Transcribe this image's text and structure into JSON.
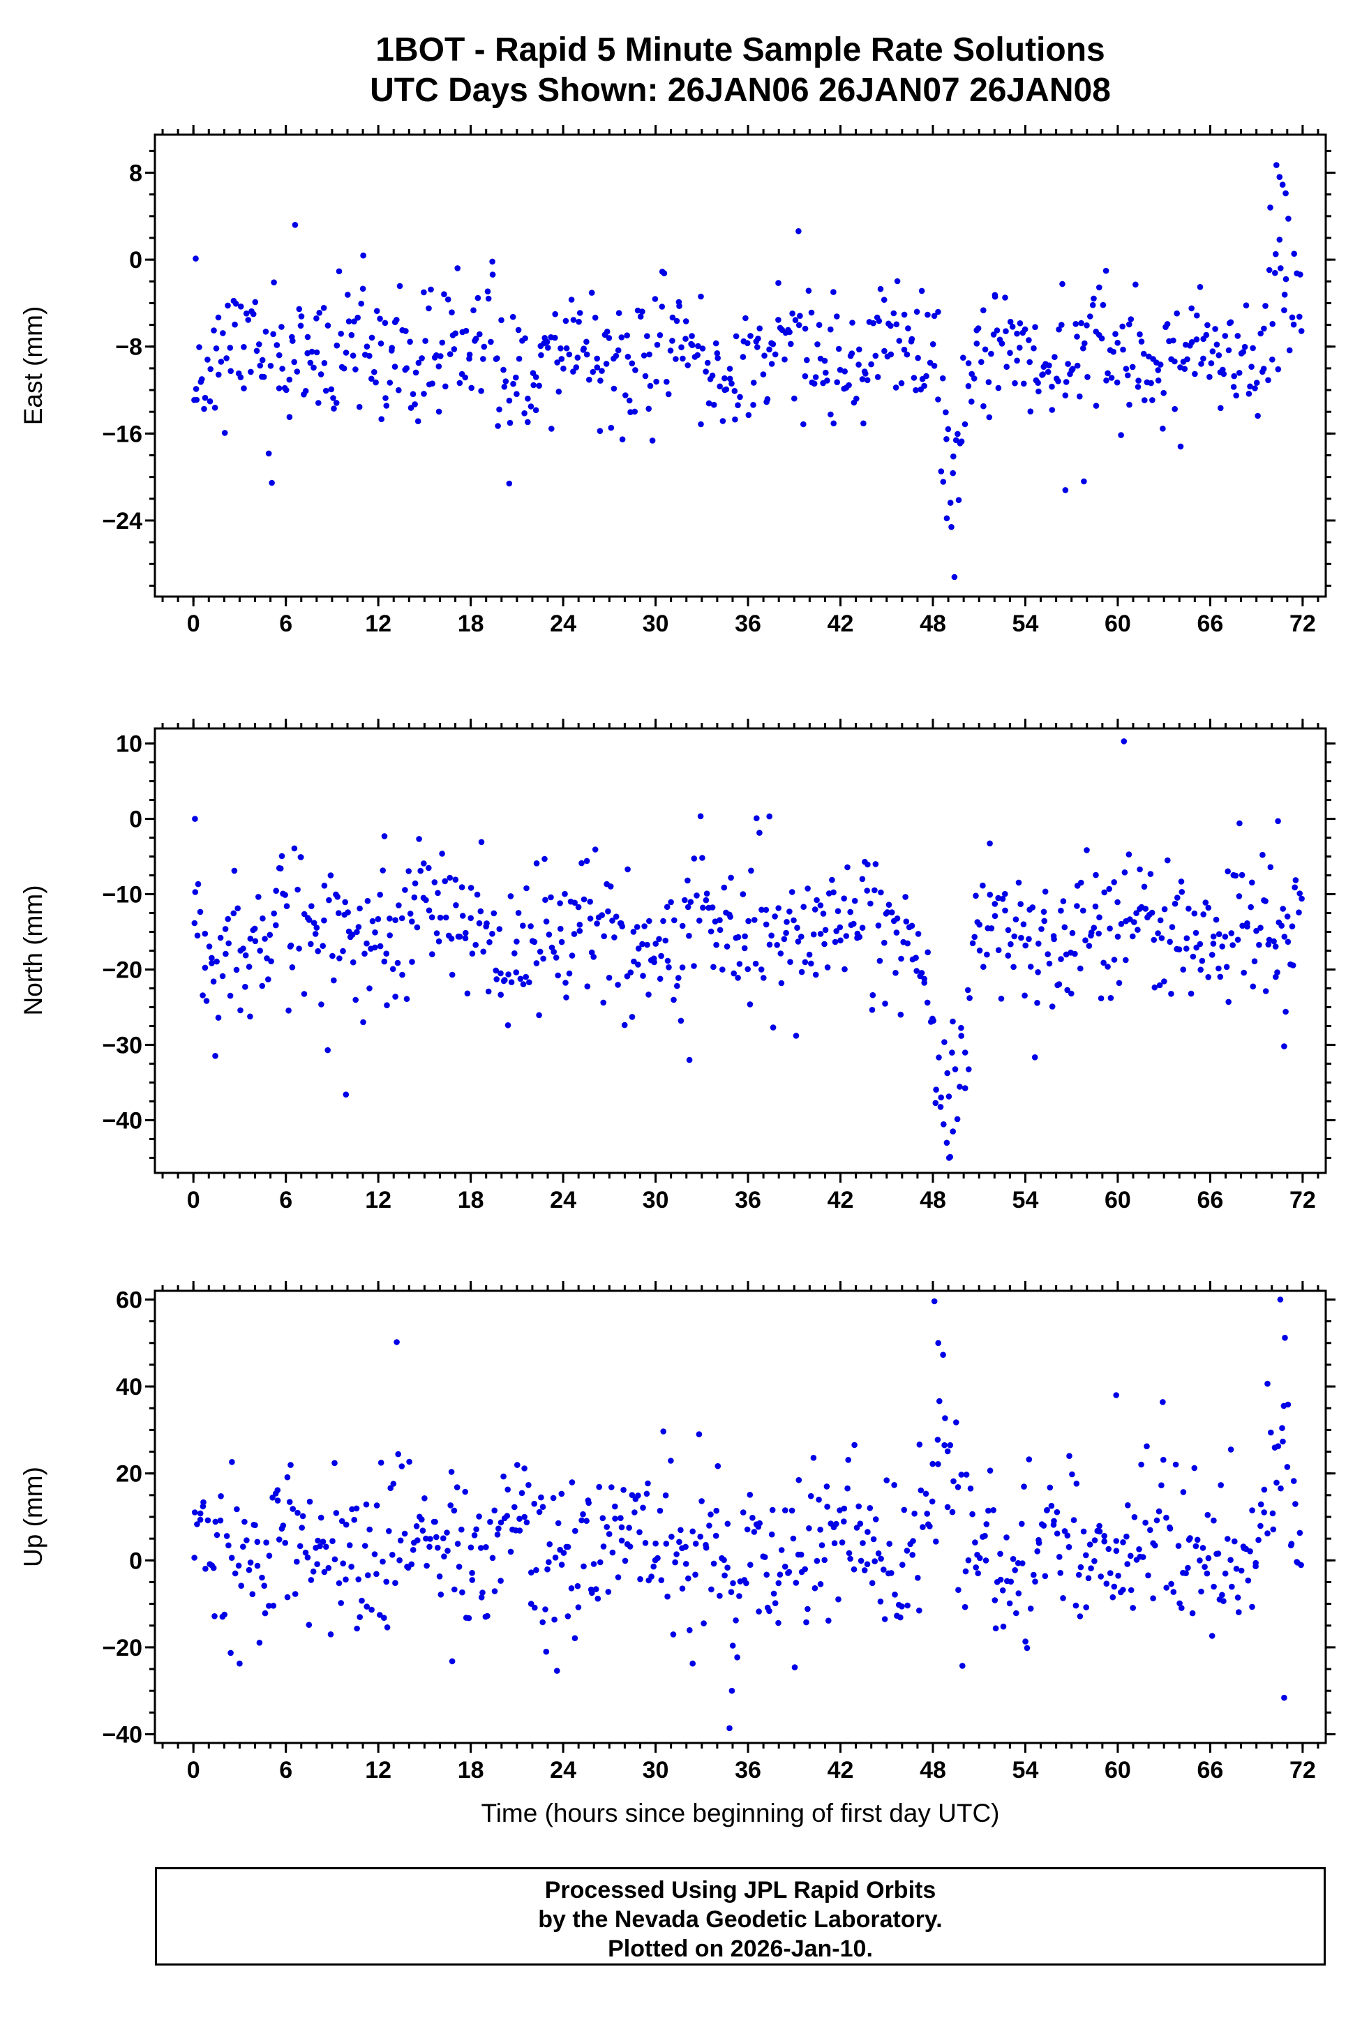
{
  "page": {
    "footer_lines": [
      "Processed Using JPL Rapid Orbits",
      "by the Nevada Geodetic Laboratory.",
      "Plotted on 2026-Jan-10."
    ]
  },
  "chart_data": {
    "type": "scatter",
    "title": "1BOT - Rapid 5 Minute Sample Rate Solutions",
    "subtitle": "UTC Days Shown:  26JAN06 26JAN07 26JAN08",
    "xlabel": "Time (hours since beginning of first day UTC)",
    "station": "1BOT",
    "utc_days_shown": [
      "26JAN06",
      "26JAN07",
      "26JAN08"
    ],
    "marker": {
      "shape": "circle",
      "color": "#0000e6",
      "radius_px": 4.3
    },
    "grid": false,
    "legend": false,
    "panels": [
      {
        "series_name": "East",
        "ylabel": "East (mm)",
        "xlim": [
          -2.5,
          73.5
        ],
        "ylim": [
          -31,
          11.5
        ],
        "xticks": [
          0,
          6,
          12,
          18,
          24,
          30,
          36,
          42,
          48,
          54,
          60,
          66,
          72
        ],
        "yticks": [
          8,
          0,
          -8,
          -16,
          -24
        ],
        "x_minor_step": 1,
        "y_minor_step": 2,
        "gen": {
          "seed": 11,
          "n": 660,
          "mean": -9,
          "sd": 3.1,
          "wave_amp": 1.2,
          "wave_period": 7,
          "anomalies": [
            {
              "x": 49.3,
              "w": 1.2,
              "dy": -13
            },
            {
              "x": 70.8,
              "w": 1.6,
              "dy": 11
            }
          ],
          "extra": [
            [
              0.15,
              0.1
            ],
            [
              6.6,
              3.2
            ],
            [
              20.5,
              -20.6
            ],
            [
              48.9,
              -23.8
            ],
            [
              49.2,
              -24.6
            ],
            [
              49.4,
              -29.2
            ],
            [
              56.6,
              -21.2
            ],
            [
              57.8,
              -20.4
            ],
            [
              69.9,
              4.8
            ],
            [
              70.3,
              8.7
            ],
            [
              70.5,
              7.6
            ],
            [
              70.7,
              6.9
            ],
            [
              70.9,
              6.1
            ]
          ]
        }
      },
      {
        "series_name": "North",
        "ylabel": "North (mm)",
        "xlim": [
          -2.5,
          73.5
        ],
        "ylim": [
          -47,
          12
        ],
        "xticks": [
          0,
          6,
          12,
          18,
          24,
          30,
          36,
          42,
          48,
          54,
          60,
          66,
          72
        ],
        "yticks": [
          10,
          0,
          -10,
          -20,
          -30,
          -40
        ],
        "x_minor_step": 1,
        "y_minor_step": 2.5,
        "gen": {
          "seed": 22,
          "n": 660,
          "mean": -15,
          "sd": 4.8,
          "wave_amp": 1.8,
          "wave_period": 9,
          "anomalies": [
            {
              "x": 49.1,
              "w": 2.3,
              "dy": -27
            }
          ],
          "extra": [
            [
              0.1,
              0
            ],
            [
              9.9,
              -36.6
            ],
            [
              12.4,
              -2.3
            ],
            [
              32.2,
              -32
            ],
            [
              48.9,
              -43
            ],
            [
              49.05,
              -45
            ],
            [
              49.3,
              -41.5
            ],
            [
              60.4,
              10.3
            ],
            [
              67.9,
              -0.6
            ],
            [
              70.4,
              -0.3
            ],
            [
              70.8,
              -30.2
            ],
            [
              70.9,
              -25.6
            ]
          ]
        }
      },
      {
        "series_name": "Up",
        "ylabel": "Up (mm)",
        "xlim": [
          -2.5,
          73.5
        ],
        "ylim": [
          -42,
          62
        ],
        "xticks": [
          0,
          6,
          12,
          18,
          24,
          30,
          36,
          42,
          48,
          54,
          60,
          66,
          72
        ],
        "yticks": [
          60,
          40,
          20,
          0,
          -20,
          -40
        ],
        "x_minor_step": 1,
        "y_minor_step": 5,
        "gen": {
          "seed": 33,
          "n": 660,
          "mean": 2,
          "sd": 9.5,
          "wave_amp": 4,
          "wave_period": 7,
          "anomalies": [
            {
              "x": 48.4,
              "w": 1.6,
              "dy": 33
            },
            {
              "x": 70.6,
              "w": 1.8,
              "dy": 26
            },
            {
              "x": 35.0,
              "w": 1.2,
              "dy": -20
            }
          ],
          "extra": [
            [
              13.2,
              50.2
            ],
            [
              48.1,
              59.6
            ],
            [
              48.35,
              50
            ],
            [
              70.55,
              60
            ],
            [
              70.85,
              51.2
            ],
            [
              34.8,
              -38.6
            ],
            [
              34.95,
              -30
            ],
            [
              70.8,
              -31.6
            ],
            [
              59.9,
              38
            ],
            [
              23.6,
              -25.4
            ],
            [
              22.9,
              -21
            ],
            [
              16.8,
              -23.2
            ]
          ]
        }
      }
    ]
  }
}
